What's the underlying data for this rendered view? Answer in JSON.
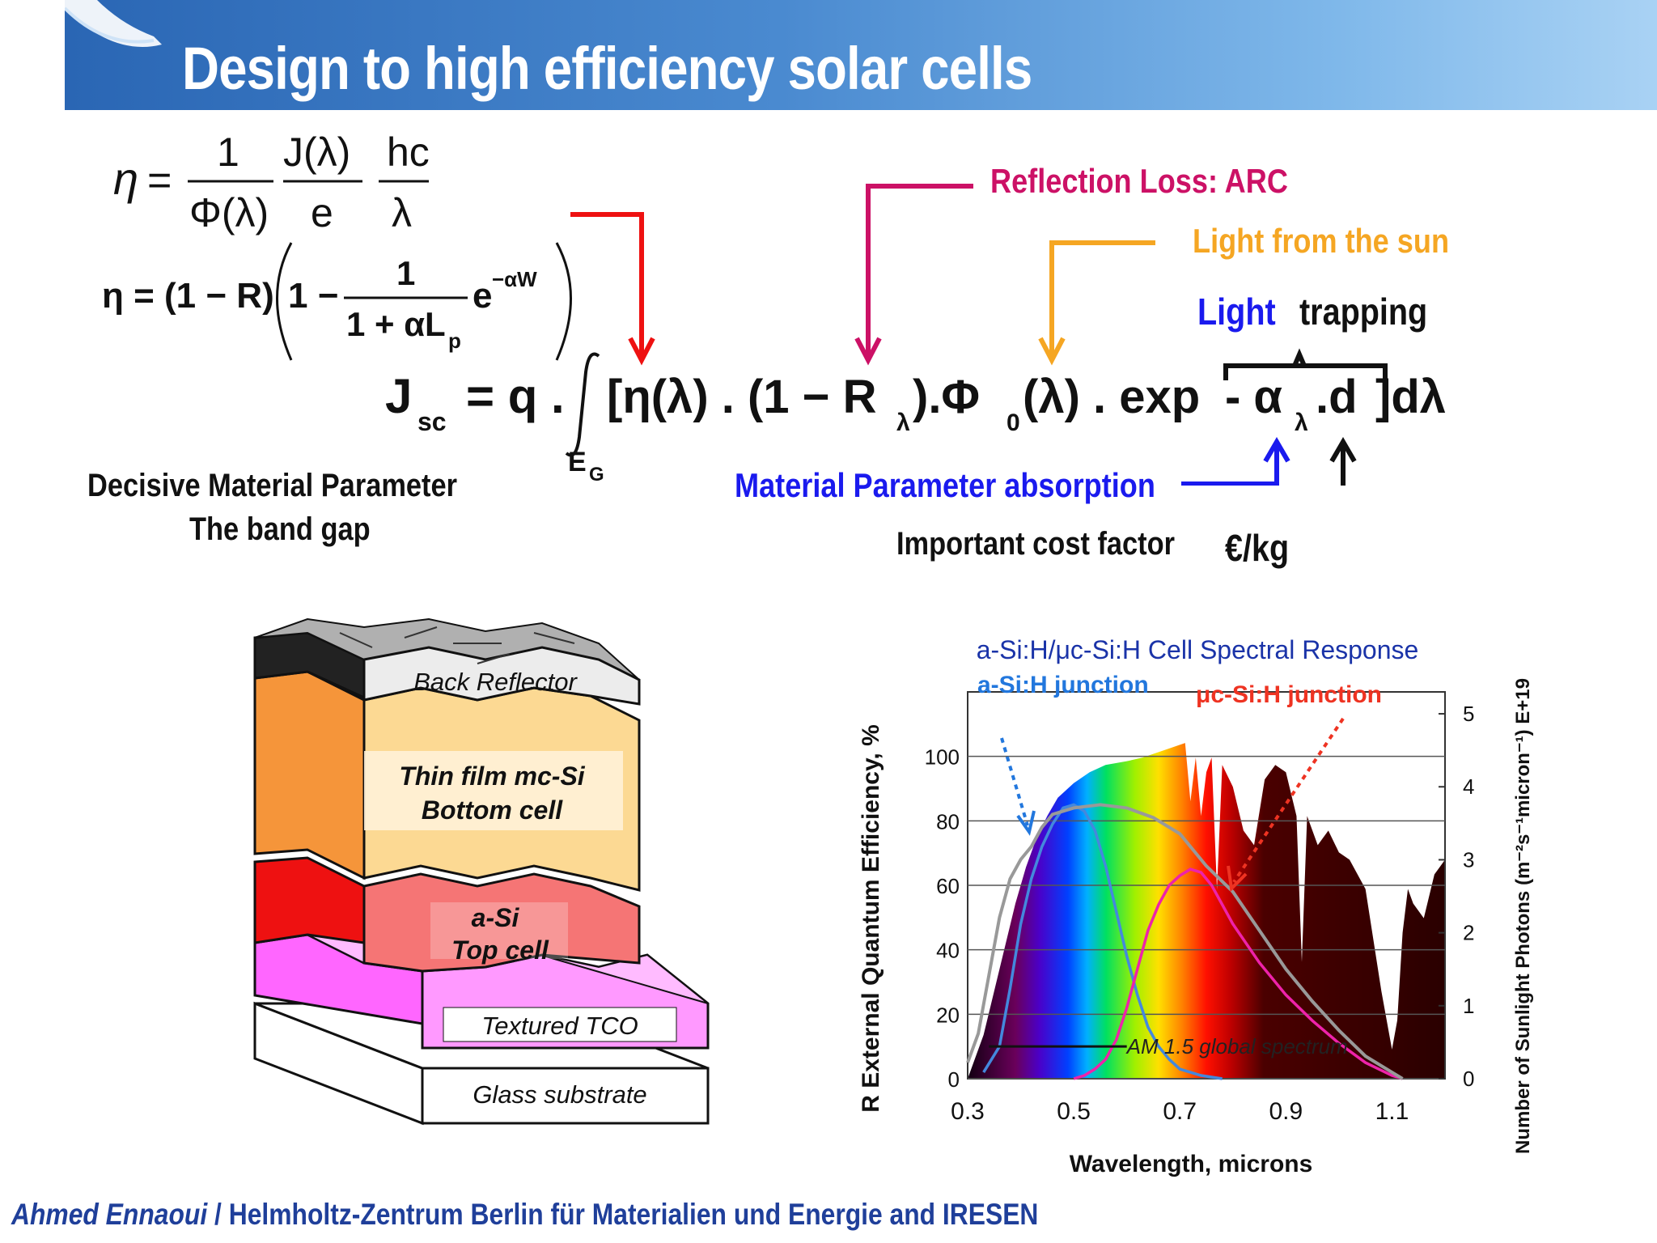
{
  "slide": {
    "title": "Design to high efficiency solar cells",
    "footer_author": "Ahmed Ennaoui",
    "footer_affil": " / Helmholtz-Zentrum Berlin für Materialien und Energie and IRESEN"
  },
  "equations": {
    "eta": "η",
    "eq": "=",
    "one": "1",
    "J": "J(λ)",
    "hc": "hc",
    "phi": "Φ(λ)",
    "e": "e",
    "lambda": "λ",
    "eta2": "η = (1 − R)",
    "one_minus": "1 −",
    "one2": "1",
    "denom": "1 + αL",
    "sub_p": "p",
    "exp": "e",
    "exp_sup": "−αW",
    "jsc_J": "J",
    "jsc_sub": "sc",
    "jsc_rhs": "= q .",
    "integrand": "[η(λ) . (1 − R",
    "sub_lambda": "λ",
    "phi0": ").Φ",
    "sub0": "0",
    "lam_exp": "(λ) . exp",
    "minus_alpha": "- α",
    "sub_lambda2": "λ",
    "dot_d": ".d",
    "d_lambda": "]dλ",
    "lower_limit": "E",
    "lower_sub": "G"
  },
  "annotations": {
    "reflection": "Reflection Loss: ARC",
    "sun": "Light from the sun",
    "light": "Light",
    "trapping": "trapping",
    "decisive": "Decisive Material Parameter",
    "bandgap": "The band gap",
    "absorption": "Material Parameter absorption",
    "cost": "Important  cost factor",
    "euro": "€/kg"
  },
  "colors": {
    "red": "#ee1111",
    "magenta": "#cc1166",
    "orange": "#f5a623",
    "blue": "#1a1aee",
    "black": "#111111",
    "header": "#2a66b4",
    "footer": "#1f3f9a"
  },
  "layers": {
    "back": "Back Reflector",
    "mc1": "Thin film mc-Si",
    "mc2": "Bottom cell",
    "asi1": "a-Si",
    "asi2": "Top cell",
    "tco": "Textured TCO",
    "glass": "Glass substrate"
  },
  "chart_data": {
    "type": "line",
    "title": "a-Si:H/μc-Si:H Cell Spectral Response",
    "xlabel": "Wavelength, microns",
    "ylabel": "R External Quantum Efficiency, %",
    "y2label": "Number of Sunlight Photons (m⁻²s⁻¹micron⁻¹) E+19",
    "xlim": [
      0.3,
      1.2
    ],
    "ylim": [
      0,
      120
    ],
    "y2lim": [
      0,
      5.3
    ],
    "xticks": [
      "0.3",
      "0.5",
      "0.7",
      "0.9",
      "1.1"
    ],
    "xtick_values": [
      0.3,
      0.5,
      0.7,
      0.9,
      1.1
    ],
    "yticks": [
      "0",
      "20",
      "40",
      "60",
      "80",
      "100"
    ],
    "ytick_values": [
      0,
      20,
      40,
      60,
      80,
      100
    ],
    "y2ticks": [
      "0",
      "1",
      "2",
      "3",
      "4",
      "5"
    ],
    "y2tick_values": [
      0,
      1,
      2,
      3,
      4,
      5
    ],
    "label_a": "a-Si:H junction",
    "label_uc": "μc-Si:H junction",
    "spectrum_label": "AM 1.5 global spectrum",
    "series": [
      {
        "name": "a-Si:H junction",
        "color": "#4488dd",
        "x": [
          0.33,
          0.36,
          0.38,
          0.4,
          0.42,
          0.44,
          0.46,
          0.48,
          0.5,
          0.52,
          0.54,
          0.56,
          0.58,
          0.6,
          0.62,
          0.64,
          0.66,
          0.68,
          0.7,
          0.72,
          0.74,
          0.76,
          0.78
        ],
        "y": [
          2,
          10,
          28,
          48,
          62,
          72,
          79,
          84,
          85,
          83,
          77,
          66,
          52,
          38,
          26,
          16,
          10,
          6,
          3,
          2,
          1,
          0.5,
          0
        ]
      },
      {
        "name": "μc-Si:H junction",
        "color": "#ee22aa",
        "x": [
          0.5,
          0.52,
          0.54,
          0.56,
          0.58,
          0.6,
          0.62,
          0.64,
          0.66,
          0.68,
          0.7,
          0.72,
          0.74,
          0.76,
          0.78,
          0.8,
          0.85,
          0.9,
          0.95,
          1.0,
          1.05,
          1.1,
          1.12
        ],
        "y": [
          0,
          1,
          3,
          6,
          12,
          22,
          34,
          46,
          54,
          60,
          63,
          65,
          64,
          60,
          54,
          48,
          36,
          26,
          18,
          11,
          5,
          1,
          0
        ]
      },
      {
        "name": "",
        "color": "#999999",
        "x": [
          0.3,
          0.32,
          0.34,
          0.36,
          0.38,
          0.4,
          0.42,
          0.44,
          0.46,
          0.5,
          0.55,
          0.6,
          0.65,
          0.7,
          0.75,
          0.8,
          0.85,
          0.9,
          0.95,
          1.0,
          1.05,
          1.1,
          1.12
        ],
        "y": [
          5,
          14,
          32,
          50,
          62,
          68,
          72,
          78,
          82,
          84,
          85,
          84,
          81,
          76,
          66,
          58,
          46,
          34,
          24,
          15,
          7,
          2,
          0
        ]
      }
    ],
    "spectrum": {
      "x": [
        0.3,
        0.33,
        0.35,
        0.37,
        0.39,
        0.41,
        0.43,
        0.45,
        0.47,
        0.5,
        0.53,
        0.56,
        0.6,
        0.63,
        0.65,
        0.67,
        0.69,
        0.71,
        0.72,
        0.73,
        0.74,
        0.75,
        0.76,
        0.77,
        0.78,
        0.8,
        0.82,
        0.84,
        0.86,
        0.88,
        0.9,
        0.92,
        0.93,
        0.94,
        0.96,
        0.98,
        1.0,
        1.02,
        1.05,
        1.08,
        1.1,
        1.11,
        1.12,
        1.13,
        1.14,
        1.16,
        1.18,
        1.2
      ],
      "y": [
        0,
        0.6,
        1.2,
        1.8,
        2.4,
        2.9,
        3.3,
        3.6,
        3.85,
        4.05,
        4.2,
        4.3,
        4.35,
        4.4,
        4.45,
        4.5,
        4.55,
        4.6,
        3.8,
        4.4,
        3.6,
        4.2,
        4.4,
        2.6,
        4.3,
        4.0,
        3.4,
        3.2,
        4.1,
        4.3,
        4.2,
        3.6,
        1.6,
        3.6,
        3.2,
        3.4,
        3.1,
        3.0,
        2.6,
        1.2,
        0.4,
        0.8,
        2.0,
        2.6,
        2.4,
        2.2,
        2.8,
        3.0
      ]
    }
  }
}
